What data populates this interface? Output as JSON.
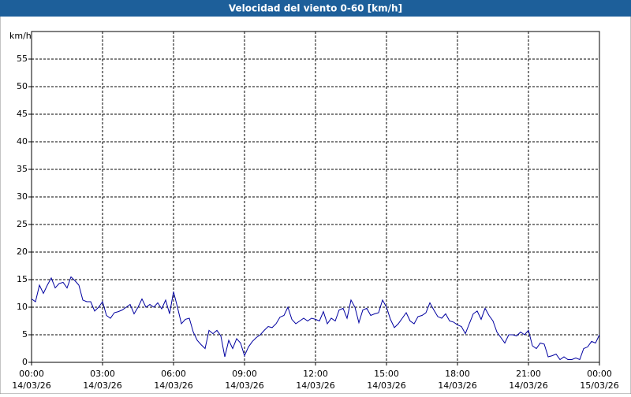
{
  "chart_data": {
    "type": "line",
    "title": "Velocidad del viento 0-60 [km/h]",
    "y_unit": "km/h",
    "xlim": [
      0,
      1440
    ],
    "ylim": [
      0,
      60
    ],
    "yticks": [
      0,
      5,
      10,
      15,
      20,
      25,
      30,
      35,
      40,
      45,
      50,
      55
    ],
    "xticks": [
      {
        "value": 0,
        "label": "00:00"
      },
      {
        "value": 180,
        "label": "03:00"
      },
      {
        "value": 360,
        "label": "06:00"
      },
      {
        "value": 540,
        "label": "09:00"
      },
      {
        "value": 720,
        "label": "12:00"
      },
      {
        "value": 900,
        "label": "15:00"
      },
      {
        "value": 1080,
        "label": "18:00"
      },
      {
        "value": 1260,
        "label": "21:00"
      },
      {
        "value": 1440,
        "label": "00:00"
      }
    ],
    "xtick_dates": [
      "14/03/26",
      "14/03/26",
      "14/03/26",
      "14/03/26",
      "14/03/26",
      "14/03/26",
      "14/03/26",
      "14/03/26",
      "15/03/26"
    ],
    "grid": true,
    "series": [
      {
        "color": "#0000a0",
        "x": [
          0,
          10,
          20,
          30,
          40,
          50,
          60,
          70,
          80,
          90,
          100,
          110,
          120,
          130,
          140,
          150,
          160,
          170,
          180,
          190,
          200,
          210,
          220,
          230,
          240,
          250,
          260,
          270,
          280,
          290,
          300,
          310,
          320,
          330,
          340,
          350,
          360,
          370,
          380,
          390,
          400,
          410,
          420,
          430,
          440,
          450,
          460,
          470,
          480,
          490,
          500,
          510,
          520,
          530,
          540,
          550,
          560,
          570,
          580,
          590,
          600,
          610,
          620,
          630,
          640,
          650,
          660,
          670,
          680,
          690,
          700,
          710,
          720,
          730,
          740,
          750,
          760,
          770,
          780,
          790,
          800,
          810,
          820,
          830,
          840,
          850,
          860,
          870,
          880,
          890,
          900,
          910,
          920,
          930,
          940,
          950,
          960,
          970,
          980,
          990,
          1000,
          1010,
          1020,
          1030,
          1040,
          1050,
          1060,
          1070,
          1080,
          1090,
          1100,
          1110,
          1120,
          1130,
          1140,
          1150,
          1160,
          1170,
          1180,
          1190,
          1200,
          1210,
          1220,
          1230,
          1240,
          1250,
          1260,
          1270,
          1280,
          1290,
          1300,
          1310,
          1320,
          1330,
          1340,
          1350,
          1360,
          1370,
          1380,
          1390,
          1400,
          1410,
          1420,
          1430,
          1440
        ],
        "values": [
          11.5,
          11,
          14,
          12.5,
          14,
          15.3,
          13.5,
          14.3,
          14.5,
          13.5,
          15.5,
          14.8,
          14,
          11.3,
          11,
          11,
          9.3,
          10,
          11,
          8.5,
          8,
          9,
          9.2,
          9.5,
          10,
          10.5,
          8.8,
          10,
          11.5,
          10,
          10.5,
          10,
          10.8,
          9.7,
          11.3,
          8.8,
          12.8,
          10,
          7,
          7.8,
          8,
          5.5,
          4,
          3.2,
          2.5,
          5.8,
          5.2,
          5.8,
          4.8,
          1,
          4,
          2.5,
          4.3,
          3.5,
          1.2,
          2.8,
          3.8,
          4.5,
          5,
          5.8,
          6.5,
          6.3,
          7,
          8.2,
          8.5,
          10,
          7.8,
          7,
          7.5,
          8,
          7.5,
          8,
          7.8,
          7.5,
          9.2,
          7,
          8,
          7.5,
          9.5,
          9.8,
          8,
          11.3,
          10,
          7.2,
          9.5,
          9.8,
          8.5,
          8.8,
          9,
          11.3,
          10,
          7.8,
          6.3,
          7,
          8,
          9,
          7.5,
          7,
          8.3,
          8.5,
          9,
          10.8,
          9.5,
          8.3,
          8,
          8.8,
          7.5,
          7.3,
          6.8,
          6.5,
          5.2,
          7,
          8.8,
          9.3,
          7.8,
          9.8,
          8.5,
          7.5,
          5.5,
          4.5,
          3.5,
          5,
          5,
          4.8,
          5.5,
          5,
          5.8,
          3,
          2.5,
          3.5,
          3.3,
          1,
          1.2,
          1.5,
          0.5,
          1,
          0.5,
          0.5,
          0.8,
          0.5,
          2.5,
          2.8,
          3.8,
          3.5,
          5
        ]
      }
    ]
  }
}
